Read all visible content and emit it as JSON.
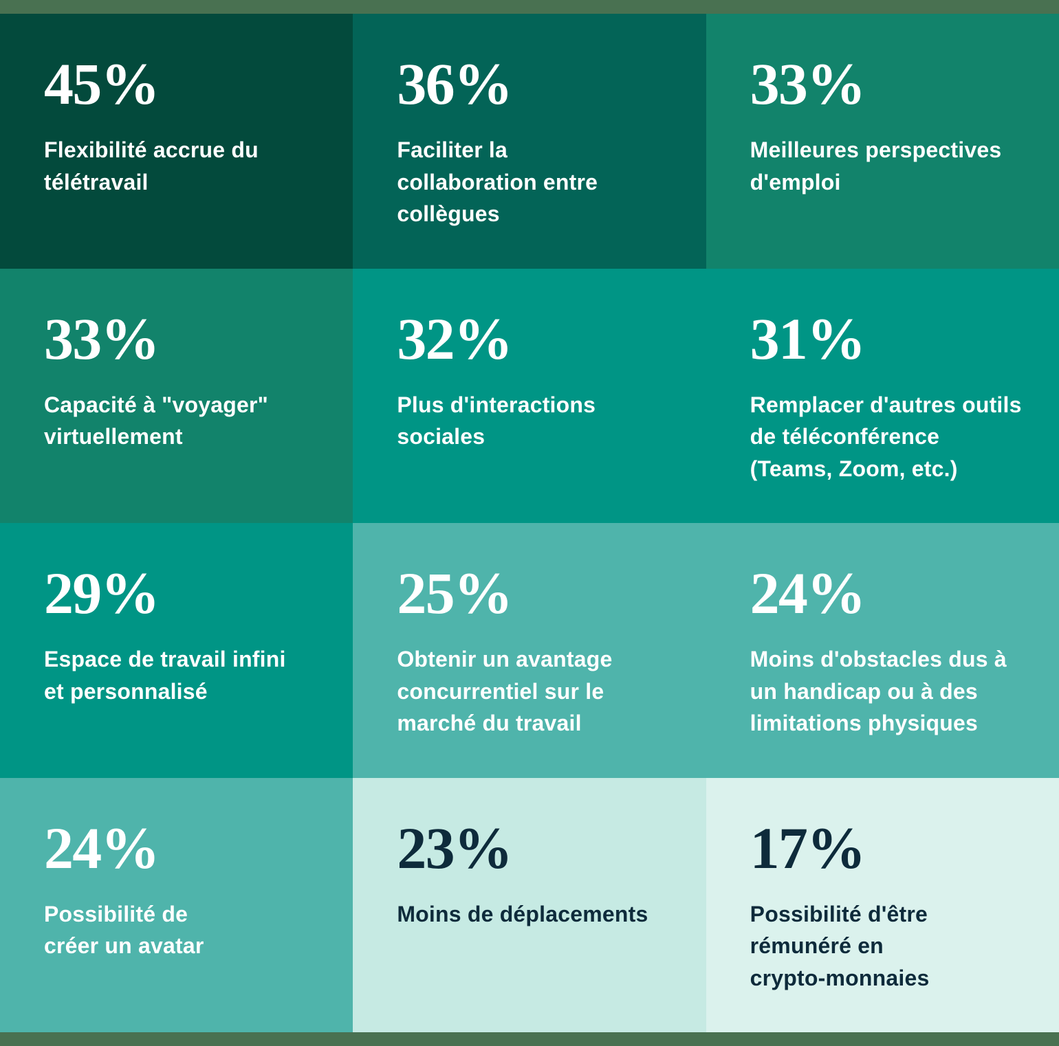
{
  "page": {
    "top_strip_color": "#497151",
    "bottom_strip_color": "#497151"
  },
  "tiles": [
    {
      "value": "45%",
      "label": "Flexibilité accrue du\ntélétravail",
      "bg": "#034A3C",
      "fg": "#FFFFFF"
    },
    {
      "value": "36%",
      "label": "Faciliter la\ncollaboration entre\ncollègues",
      "bg": "#036457",
      "fg": "#FFFFFF"
    },
    {
      "value": "33%",
      "label": "Meilleures perspectives\nd'emploi",
      "bg": "#12836B",
      "fg": "#FFFFFF"
    },
    {
      "value": "33%",
      "label": "Capacité à \"voyager\"\nvirtuellement",
      "bg": "#12836B",
      "fg": "#FFFFFF"
    },
    {
      "value": "32%",
      "label": "Plus d'interactions\nsociales",
      "bg": "#009585",
      "fg": "#FFFFFF"
    },
    {
      "value": "31%",
      "label": "Remplacer d'autres outils\nde téléconférence\n(Teams, Zoom, etc.)",
      "bg": "#009585",
      "fg": "#FFFFFF"
    },
    {
      "value": "29%",
      "label": "Espace de travail infini\net personnalisé",
      "bg": "#009585",
      "fg": "#FFFFFF"
    },
    {
      "value": "25%",
      "label": "Obtenir un avantage\nconcurrentiel sur le\nmarché du travail",
      "bg": "#4FB4AB",
      "fg": "#FFFFFF"
    },
    {
      "value": "24%",
      "label": "Moins d'obstacles dus à\nun handicap ou à des\nlimitations physiques",
      "bg": "#4FB4AB",
      "fg": "#FFFFFF"
    },
    {
      "value": "24%",
      "label": "Possibilité de\ncréer un avatar",
      "bg": "#4FB4AB",
      "fg": "#FFFFFF"
    },
    {
      "value": "23%",
      "label": "Moins de déplacements",
      "bg": "#C6EAE3",
      "fg": "#0E2B3B"
    },
    {
      "value": "17%",
      "label": "Possibilité d'être\nrémunéré en\ncrypto-monnaies",
      "bg": "#DBF2ED",
      "fg": "#0E2B3B"
    }
  ],
  "chart_data": {
    "type": "table",
    "title": "",
    "categories": [
      "Flexibilité accrue du télétravail",
      "Faciliter la collaboration entre collègues",
      "Meilleures perspectives d'emploi",
      "Capacité à \"voyager\" virtuellement",
      "Plus d'interactions sociales",
      "Remplacer d'autres outils de téléconférence (Teams, Zoom, etc.)",
      "Espace de travail infini et personnalisé",
      "Obtenir un avantage concurrentiel sur le marché du travail",
      "Moins d'obstacles dus à un handicap ou à des limitations physiques",
      "Possibilité de créer un avatar",
      "Moins de déplacements",
      "Possibilité d'être rémunéré en crypto-monnaies"
    ],
    "values": [
      45,
      36,
      33,
      33,
      32,
      31,
      29,
      25,
      24,
      24,
      23,
      17
    ],
    "unit": "%",
    "layout": "3-column by 4-row tile grid read left-to-right, top-to-bottom; tile background color scale runs dark green (highest value) to light mint (lowest value); white text on dark tiles, dark navy text on the two lightest tiles; sage-green strips across the very top and bottom edges",
    "color_scale": [
      "#034A3C",
      "#036457",
      "#12836B",
      "#009585",
      "#4FB4AB",
      "#C6EAE3",
      "#DBF2ED"
    ]
  }
}
